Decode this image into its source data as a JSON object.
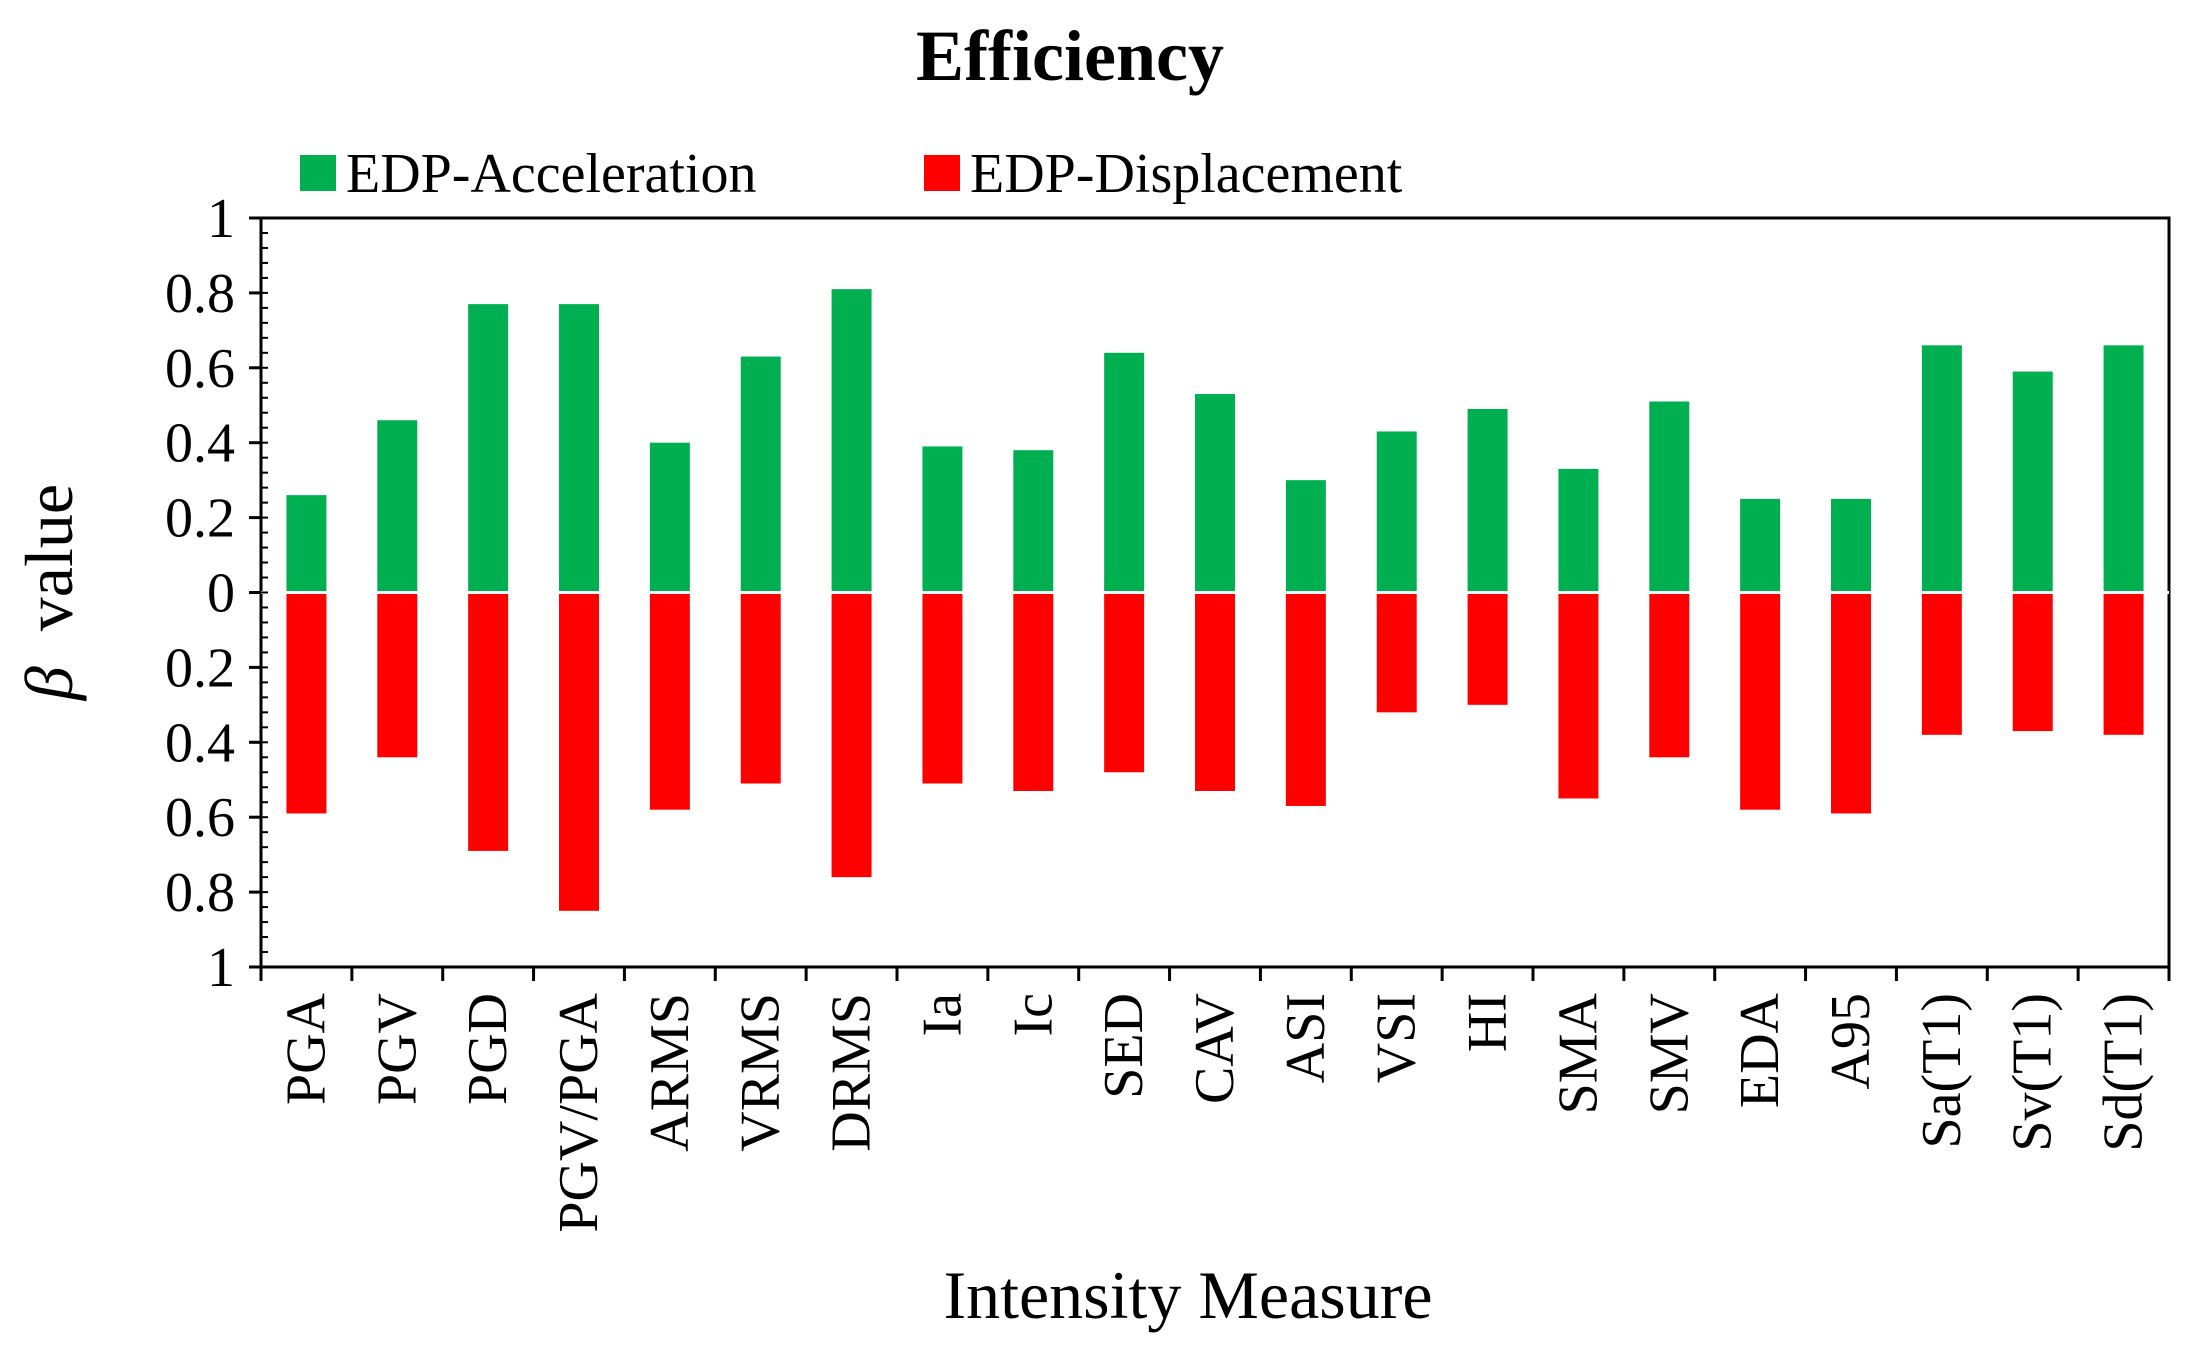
{
  "chart_data": {
    "type": "bar",
    "title": "Efficiency",
    "xlabel": "Intensity Measure",
    "ylabel_symbol": "β",
    "ylabel_text": "value",
    "ylim": [
      -1,
      1
    ],
    "yticks": [
      {
        "value": 1,
        "label": "1"
      },
      {
        "value": 0.8,
        "label": "0.8"
      },
      {
        "value": 0.6,
        "label": "0.6"
      },
      {
        "value": 0.4,
        "label": "0.4"
      },
      {
        "value": 0.2,
        "label": "0.2"
      },
      {
        "value": 0,
        "label": "0"
      },
      {
        "value": -0.2,
        "label": "0.2"
      },
      {
        "value": -0.4,
        "label": "0.4"
      },
      {
        "value": -0.6,
        "label": "0.6"
      },
      {
        "value": -0.8,
        "label": "0.8"
      },
      {
        "value": -1,
        "label": "1"
      }
    ],
    "legend_position": "top",
    "categories": [
      "PGA",
      "PGV",
      "PGD",
      "PGV/PGA",
      "ARMS",
      "VRMS",
      "DRMS",
      "Ia",
      "Ic",
      "SED",
      "CAV",
      "ASI",
      "VSI",
      "HI",
      "SMA",
      "SMV",
      "EDA",
      "A95",
      "Sa(T1)",
      "Sv(T1)",
      "Sd(T1)"
    ],
    "series": [
      {
        "name": "EDP-Acceleration",
        "color": "#00b050",
        "values": [
          0.26,
          0.46,
          0.77,
          0.77,
          0.4,
          0.63,
          0.81,
          0.39,
          0.38,
          0.64,
          0.53,
          0.3,
          0.43,
          0.49,
          0.33,
          0.51,
          0.25,
          0.25,
          0.66,
          0.59,
          0.66
        ]
      },
      {
        "name": "EDP-Displacement",
        "color": "#ff0000",
        "values": [
          -0.59,
          -0.44,
          -0.69,
          -0.85,
          -0.58,
          -0.51,
          -0.76,
          -0.51,
          -0.53,
          -0.48,
          -0.53,
          -0.57,
          -0.32,
          -0.3,
          -0.55,
          -0.44,
          -0.58,
          -0.59,
          -0.38,
          -0.37,
          -0.38
        ]
      }
    ]
  }
}
